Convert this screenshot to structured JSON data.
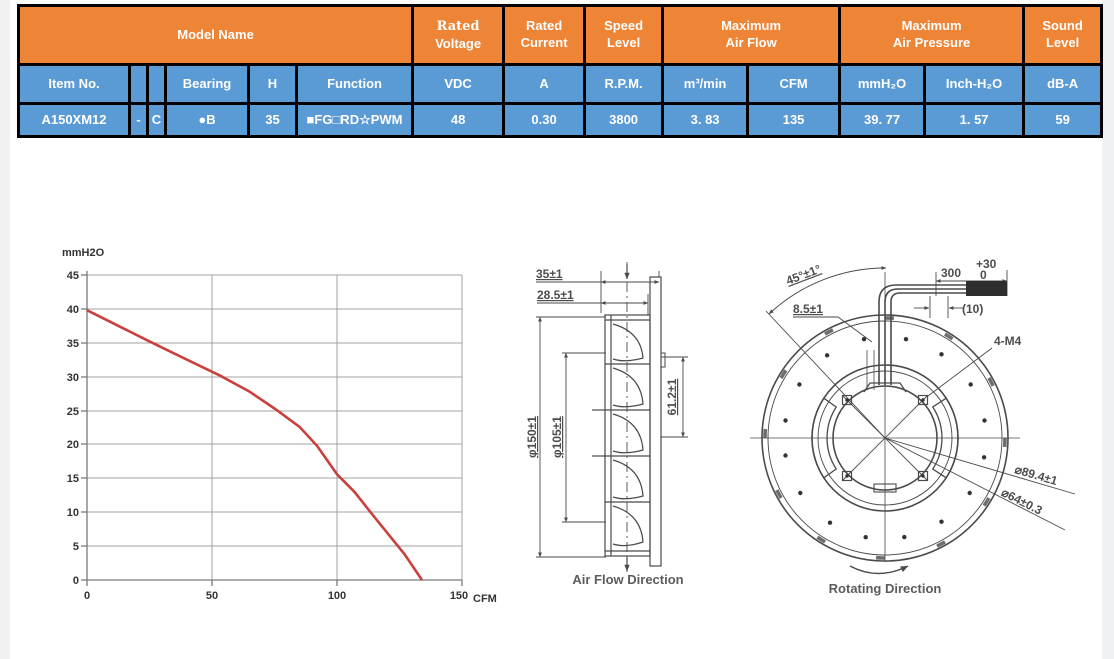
{
  "table": {
    "header": {
      "model_name": "Model Name",
      "rated_voltage_line1": "Rated",
      "rated_voltage_line2": "Voltage",
      "rated_current_line1": "Rated",
      "rated_current_line2": "Current",
      "speed_level_line1": "Speed",
      "speed_level_line2": "Level",
      "max_air_flow_line1": "Maximum",
      "max_air_flow_line2": "Air Flow",
      "max_air_pressure_line1": "Maximum",
      "max_air_pressure_line2": "Air Pressure",
      "sound_level_line1": "Sound",
      "sound_level_line2": "Level"
    },
    "columns": [
      "Item No.",
      "",
      "",
      "Bearing",
      "H",
      "Function",
      "VDC",
      "A",
      "R.P.M.",
      "m³/min",
      "CFM",
      "mmH₂O",
      "Inch-H₂O",
      "dB-A"
    ],
    "row": [
      "A150XM12",
      "-",
      "C",
      "●B",
      "35",
      "■FG□RD☆PWM",
      "48",
      "0.30",
      "3800",
      "3. 83",
      "135",
      "39. 77",
      "1. 57",
      "59"
    ]
  },
  "chart_data": {
    "type": "line",
    "title": "",
    "ylabel": "mmH2O",
    "xlabel": "CFM",
    "xlim": [
      0,
      150
    ],
    "ylim": [
      0,
      45
    ],
    "xticks": [
      "0",
      "50",
      "100",
      "150"
    ],
    "yticks": [
      "45",
      "40",
      "35",
      "30",
      "25",
      "20",
      "15",
      "10",
      "5",
      "0"
    ],
    "grid": true,
    "series": [
      {
        "name": "pressure-vs-airflow",
        "color": "#c9403d",
        "points": [
          [
            0,
            39.8
          ],
          [
            12,
            37.6
          ],
          [
            25,
            35.2
          ],
          [
            40,
            32.5
          ],
          [
            53,
            30.2
          ],
          [
            65,
            27.8
          ],
          [
            75,
            25.3
          ],
          [
            85,
            22.6
          ],
          [
            92,
            19.8
          ],
          [
            100,
            15.6
          ],
          [
            107,
            13.0
          ],
          [
            113,
            10.2
          ],
          [
            120,
            7.0
          ],
          [
            127,
            3.8
          ],
          [
            134,
            0
          ]
        ]
      }
    ]
  },
  "side_view": {
    "dim_total_width": "35±1",
    "dim_inner_width": "28.5±1",
    "dim_outer_dia": "φ150±1",
    "dim_inner_dia": "φ105±1",
    "dim_outlet": "61.2±1",
    "caption": "Air Flow Direction"
  },
  "front_view": {
    "dim_angle": "45°±1°",
    "dim_lead_length": "300",
    "tol_plus": "+30",
    "tol_minus": "0",
    "dim_connector": "(10)",
    "dim_wire_offset": "8.5±1",
    "dim_mount": "4-M4",
    "dim_bolt_circle": "⌀89.4±1",
    "dim_hub_dia": "⌀64±0.3",
    "caption": "Rotating Direction"
  }
}
